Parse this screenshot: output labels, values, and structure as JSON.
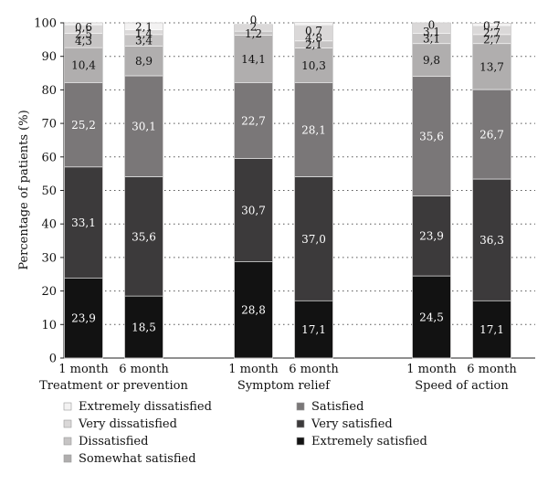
{
  "chart_data": {
    "type": "bar",
    "stacked": true,
    "ylabel": "Percentage of patients (%)",
    "ylim": [
      0,
      100
    ],
    "yticks": [
      0,
      10,
      20,
      30,
      40,
      50,
      60,
      70,
      80,
      90,
      100
    ],
    "grid": "dotted horizontal",
    "legend_position": "bottom",
    "groups": [
      {
        "name": "Treatment or prevention",
        "bars": [
          {
            "label": "1 month",
            "values": [
              23.9,
              33.1,
              25.2,
              10.4,
              4.3,
              2.5,
              0.6
            ],
            "labels": [
              "23,9",
              "33,1",
              "25,2",
              "10,4",
              "4,3",
              "2,5",
              "0,6"
            ]
          },
          {
            "label": "6 month",
            "values": [
              18.5,
              35.6,
              30.1,
              8.9,
              3.4,
              1.4,
              2.1
            ],
            "labels": [
              "18,5",
              "35,6",
              "30,1",
              "8,9",
              "3,4",
              "1,4",
              "2,1"
            ]
          }
        ]
      },
      {
        "name": "Symptom relief",
        "bars": [
          {
            "label": "1 month",
            "values": [
              28.8,
              30.7,
              22.7,
              14.1,
              1.2,
              2.0,
              0.0
            ],
            "labels": [
              "28,8",
              "30,7",
              "22,7",
              "14,1",
              "1,2",
              "2",
              "0"
            ]
          },
          {
            "label": "6 month",
            "values": [
              17.1,
              37.0,
              28.1,
              10.3,
              2.1,
              4.8,
              0.7
            ],
            "labels": [
              "17,1",
              "37,0",
              "28,1",
              "10,3",
              "2,1",
              "4,8",
              "0,7"
            ]
          }
        ]
      },
      {
        "name": "Speed of action",
        "bars": [
          {
            "label": "1 month",
            "values": [
              24.5,
              23.9,
              35.6,
              9.8,
              3.1,
              3.1,
              0.0
            ],
            "labels": [
              "24,5",
              "23,9",
              "35,6",
              "9,8",
              "3,1",
              "3,1",
              "0"
            ]
          },
          {
            "label": "6 month",
            "values": [
              17.1,
              36.3,
              26.7,
              13.7,
              2.7,
              2.7,
              0.7
            ],
            "labels": [
              "17,1",
              "36,3",
              "26,7",
              "13,7",
              "2,7",
              "2,7",
              "0,7"
            ]
          }
        ]
      }
    ],
    "series": [
      {
        "name": "Extremely satisfied",
        "color": "#121212",
        "text_color": "#ffffff"
      },
      {
        "name": "Very satisfied",
        "color": "#3c3a3b",
        "text_color": "#ffffff"
      },
      {
        "name": "Satisfied",
        "color": "#7a7778",
        "text_color": "#ffffff"
      },
      {
        "name": "Somewhat satisfied",
        "color": "#b0aeae",
        "text_color": "#111111"
      },
      {
        "name": "Dissatisfied",
        "color": "#c6c4c4",
        "text_color": "#111111"
      },
      {
        "name": "Very dissatisfied",
        "color": "#dad8d8",
        "text_color": "#111111"
      },
      {
        "name": "Extremely dissatisfied",
        "color": "#f3f2f2",
        "text_color": "#111111"
      }
    ],
    "legend_order": [
      "Extremely dissatisfied",
      "Very dissatisfied",
      "Dissatisfied",
      "Somewhat satisfied",
      "Satisfied",
      "Very satisfied",
      "Extremely satisfied"
    ]
  }
}
